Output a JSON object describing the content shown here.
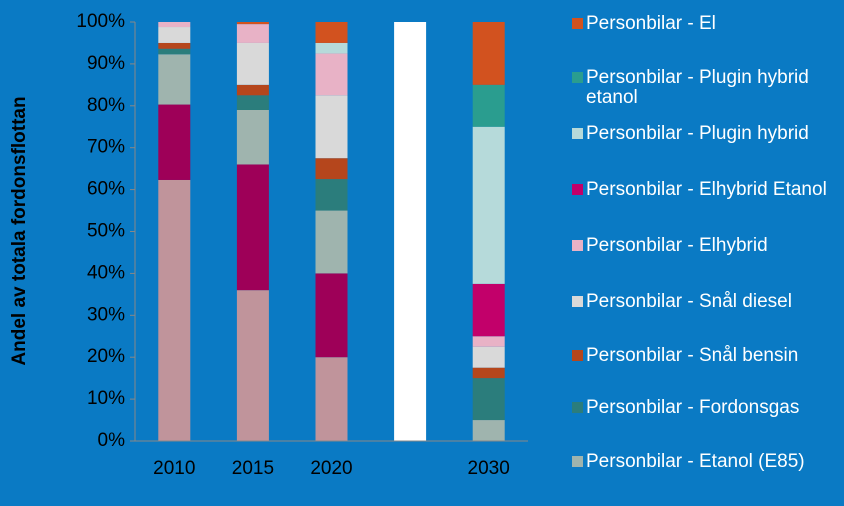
{
  "chart_data": {
    "type": "stacked_bar",
    "y_label": "Andel av totala fordonsflottan",
    "categories": [
      "2010",
      "2015",
      "2020",
      null,
      "2030"
    ],
    "ylim": [
      0,
      100
    ],
    "yticks": [
      {
        "value": 0,
        "label": "0%"
      },
      {
        "value": 10,
        "label": "10%"
      },
      {
        "value": 20,
        "label": "20%"
      },
      {
        "value": 30,
        "label": "30%"
      },
      {
        "value": 40,
        "label": "40%"
      },
      {
        "value": 50,
        "label": "50%"
      },
      {
        "value": 60,
        "label": "60%"
      },
      {
        "value": 70,
        "label": "70%"
      },
      {
        "value": 80,
        "label": "80%"
      },
      {
        "value": 90,
        "label": "90%"
      },
      {
        "value": 100,
        "label": "100%"
      }
    ],
    "legend": "right",
    "series": [
      {
        "name": null,
        "color": "#c0949b",
        "values": [
          62.3,
          36,
          20,
          null,
          0
        ]
      },
      {
        "name": null,
        "color": "#9e0058",
        "values": [
          18,
          30,
          20,
          null,
          0
        ]
      },
      {
        "name": "Personbilar - Etanol (E85)",
        "color": "#9fb4ae",
        "values": [
          12,
          13,
          15,
          null,
          5
        ]
      },
      {
        "name": "Personbilar - Fordonsgas",
        "color": "#2b7d7c",
        "values": [
          1.3,
          3.5,
          7.5,
          null,
          10
        ]
      },
      {
        "name": "Personbilar - Snål bensin",
        "color": "#b5461c",
        "values": [
          1.4,
          2.5,
          5,
          null,
          2.5
        ]
      },
      {
        "name": "Personbilar - Snål diesel",
        "color": "#d9d9d9",
        "values": [
          3.8,
          10,
          15,
          null,
          5
        ]
      },
      {
        "name": "Personbilar - Elhybrid",
        "color": "#e8b2c6",
        "values": [
          1.2,
          4.5,
          10,
          null,
          2.5
        ]
      },
      {
        "name": "Personbilar - Elhybrid Etanol",
        "color": "#c2006a",
        "values": [
          0,
          0,
          0,
          null,
          12.5
        ]
      },
      {
        "name": "Personbilar - Plugin hybrid",
        "color": "#b6dada",
        "values": [
          0,
          0,
          2.5,
          null,
          37.5
        ]
      },
      {
        "name": "Personbilar - Plugin hybrid etanol",
        "color": "#2a9d8f",
        "values": [
          0,
          0,
          0,
          null,
          10
        ]
      },
      {
        "name": "Personbilar - El",
        "color": "#d2521f",
        "values": [
          0,
          0.5,
          5,
          null,
          15
        ]
      },
      {
        "name": null,
        "color": "#ffffff",
        "values": [
          null,
          null,
          null,
          100,
          null
        ]
      }
    ]
  }
}
